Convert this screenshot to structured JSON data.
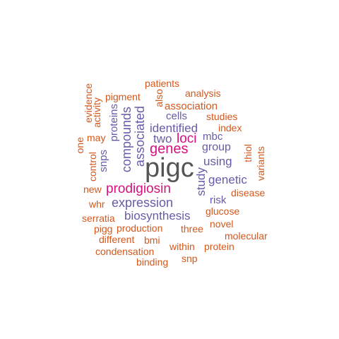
{
  "palette": {
    "dark": "#555555",
    "magenta": "#d6117e",
    "purple": "#6a5aa8",
    "orange": "#d4581c"
  },
  "words": [
    {
      "text": "pigc",
      "color": "dark"
    },
    {
      "text": "prodigiosin",
      "color": "magenta"
    },
    {
      "text": "genes",
      "color": "magenta"
    },
    {
      "text": "loci",
      "color": "magenta"
    },
    {
      "text": "expression",
      "color": "purple"
    },
    {
      "text": "associated",
      "color": "purple"
    },
    {
      "text": "biosynthesis",
      "color": "purple"
    },
    {
      "text": "compounds",
      "color": "purple"
    },
    {
      "text": "identified",
      "color": "purple"
    },
    {
      "text": "genetic",
      "color": "purple"
    },
    {
      "text": "study",
      "color": "purple"
    },
    {
      "text": "using",
      "color": "purple"
    },
    {
      "text": "two",
      "color": "purple"
    },
    {
      "text": "group",
      "color": "purple"
    },
    {
      "text": "mbc",
      "color": "purple"
    },
    {
      "text": "cells",
      "color": "purple"
    },
    {
      "text": "proteins",
      "color": "purple"
    },
    {
      "text": "snps",
      "color": "purple"
    },
    {
      "text": "risk",
      "color": "purple"
    },
    {
      "text": "association",
      "color": "orange"
    },
    {
      "text": "production",
      "color": "orange"
    },
    {
      "text": "three",
      "color": "orange"
    },
    {
      "text": "glucose",
      "color": "orange"
    },
    {
      "text": "patients",
      "color": "orange"
    },
    {
      "text": "analysis",
      "color": "orange"
    },
    {
      "text": "also",
      "color": "orange"
    },
    {
      "text": "pigment",
      "color": "orange"
    },
    {
      "text": "studies",
      "color": "orange"
    },
    {
      "text": "index",
      "color": "orange"
    },
    {
      "text": "evidence",
      "color": "orange"
    },
    {
      "text": "activity",
      "color": "orange"
    },
    {
      "text": "may",
      "color": "orange"
    },
    {
      "text": "one",
      "color": "orange"
    },
    {
      "text": "control",
      "color": "orange"
    },
    {
      "text": "new",
      "color": "orange"
    },
    {
      "text": "thiol",
      "color": "orange"
    },
    {
      "text": "variants",
      "color": "orange"
    },
    {
      "text": "disease",
      "color": "orange"
    },
    {
      "text": "whr",
      "color": "orange"
    },
    {
      "text": "serratia",
      "color": "orange"
    },
    {
      "text": "novel",
      "color": "orange"
    },
    {
      "text": "pigg",
      "color": "orange"
    },
    {
      "text": "molecular",
      "color": "orange"
    },
    {
      "text": "different",
      "color": "orange"
    },
    {
      "text": "bmi",
      "color": "orange"
    },
    {
      "text": "within",
      "color": "orange"
    },
    {
      "text": "protein",
      "color": "orange"
    },
    {
      "text": "condensation",
      "color": "orange"
    },
    {
      "text": "snp",
      "color": "orange"
    },
    {
      "text": "binding",
      "color": "orange"
    }
  ]
}
